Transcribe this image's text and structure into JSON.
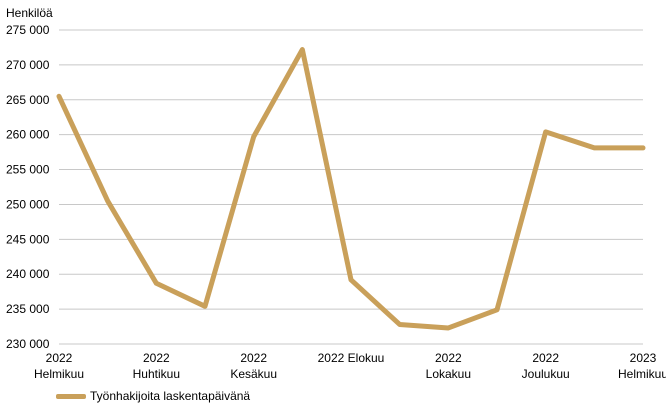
{
  "chart_data": {
    "type": "line",
    "y_unit_label": "Henkilöä",
    "x": [
      "2022-02",
      "2022-03",
      "2022-04",
      "2022-05",
      "2022-06",
      "2022-07",
      "2022-08",
      "2022-09",
      "2022-10",
      "2022-11",
      "2022-12",
      "2023-01",
      "2023-02"
    ],
    "x_tick_labels": [
      {
        "line1": "2022",
        "line2": "Helmikuu"
      },
      {
        "line1": "2022",
        "line2": "Huhtikuu"
      },
      {
        "line1": "2022",
        "line2": "Kesäkuu"
      },
      {
        "line1": "2022 Elokuu",
        "line2": ""
      },
      {
        "line1": "2022",
        "line2": "Lokakuu"
      },
      {
        "line1": "2022",
        "line2": "Joulukuu"
      },
      {
        "line1": "2023",
        "line2": "Helmikuu"
      }
    ],
    "y_ticks": [
      "230 000",
      "235 000",
      "240 000",
      "245 000",
      "250 000",
      "255 000",
      "260 000",
      "265 000",
      "270 000",
      "275 000"
    ],
    "ylim": [
      230000,
      275000
    ],
    "series": [
      {
        "name": "Työnhakijoita laskentapäivänä",
        "color": "#C9A05A",
        "values": [
          265500,
          250500,
          238700,
          235400,
          259700,
          272200,
          239200,
          232800,
          232300,
          234900,
          260400,
          258100,
          258100
        ]
      }
    ],
    "grid": true,
    "legend_position": "bottom-left"
  }
}
